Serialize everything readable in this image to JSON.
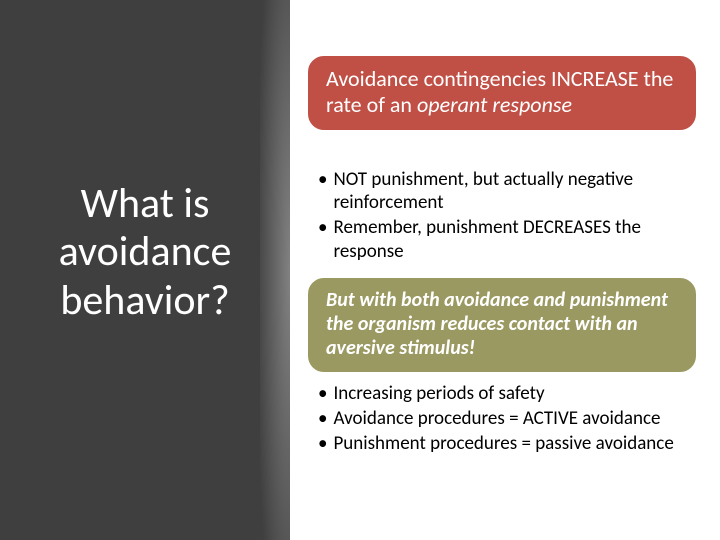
{
  "colors": {
    "left_panel_bg": "#3f3f3f",
    "slide_bg": "#ffffff",
    "callout_red_bg": "#c05046",
    "callout_olive_bg": "#9a9961",
    "callout_border": "#ffffff",
    "title_text": "#ffffff",
    "body_text": "#000000"
  },
  "title": {
    "line1": "What is",
    "line2": "avoidance",
    "line3": "behavior?",
    "fontsize": 42
  },
  "callout1": {
    "text_prefix": "Avoidance contingencies INCREASE the rate of an ",
    "text_italic": "operant response",
    "fontsize": 22,
    "bg": "#c05046"
  },
  "bullets1": {
    "items": [
      "NOT punishment, but actually negative reinforcement",
      "Remember, punishment DECREASES the response"
    ],
    "fontsize": 19
  },
  "callout2": {
    "text": "But with both avoidance and punishment the organism reduces contact with an aversive stimulus!",
    "fontsize": 20,
    "bg": "#9a9961"
  },
  "bullets2": {
    "items": [
      "Increasing periods of safety",
      "Avoidance procedures = ACTIVE avoidance",
      "Punishment procedures = passive avoidance"
    ],
    "fontsize": 19
  }
}
